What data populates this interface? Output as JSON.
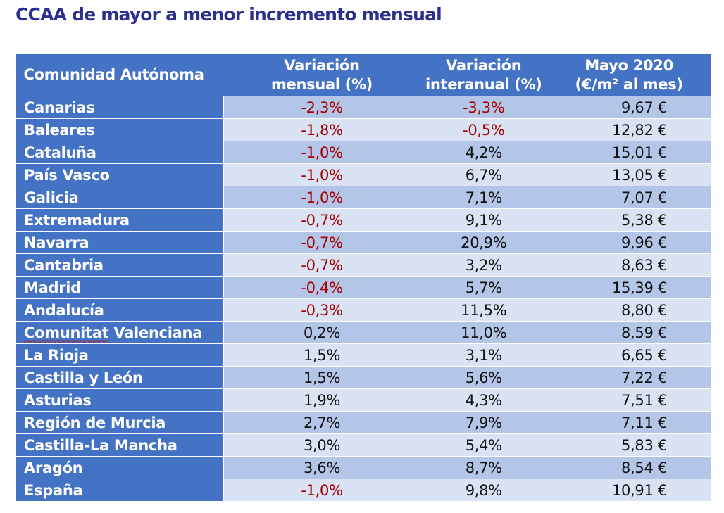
{
  "title": "CCAA de mayor a menor incremento mensual",
  "headers": [
    "Comunidad Autónoma",
    "Variación mensual (%)",
    "Variación interanual (%)",
    "Mayo 2020 (€/m² al mes)"
  ],
  "header_lines": [
    [
      "Comunidad Autónoma"
    ],
    [
      "Variación",
      "mensual (%)"
    ],
    [
      "Variación",
      "interanual (%)"
    ],
    [
      "Mayo 2020",
      "(€/m² al mes)"
    ]
  ],
  "colors": {
    "header": "#4472c4",
    "row_odd": "#b4c6e7",
    "row_even": "#dae3f3",
    "negative": "#a50000",
    "title": "#2b2f8f"
  },
  "rows": [
    [
      "Canarias",
      "-2,3%",
      "-3,3%",
      "9,67 €"
    ],
    [
      "Baleares",
      "-1,8%",
      "-0,5%",
      "12,82 €"
    ],
    [
      "Cataluña",
      "-1,0%",
      "4,2%",
      "15,01 €"
    ],
    [
      "País Vasco",
      "-1,0%",
      "6,7%",
      "13,05 €"
    ],
    [
      "Galicia",
      "-1,0%",
      "7,1%",
      "7,07 €"
    ],
    [
      "Extremadura",
      "-0,7%",
      "9,1%",
      "5,38 €"
    ],
    [
      "Navarra",
      "-0,7%",
      "20,9%",
      "9,96 €"
    ],
    [
      "Cantabria",
      "-0,7%",
      "3,2%",
      "8,63 €"
    ],
    [
      "Madrid",
      "-0,4%",
      "5,7%",
      "15,39 €"
    ],
    [
      "Andalucía",
      "-0,3%",
      "11,5%",
      "8,80 €"
    ],
    [
      "Comunitat Valenciana",
      "0,2%",
      "11,0%",
      "8,59 €"
    ],
    [
      "La Rioja",
      "1,5%",
      "3,1%",
      "6,65 €"
    ],
    [
      "Castilla y León",
      "1,5%",
      "5,6%",
      "7,22 €"
    ],
    [
      "Asturias",
      "1,9%",
      "4,3%",
      "7,51 €"
    ],
    [
      "Región de Murcia",
      "2,7%",
      "7,9%",
      "7,11 €"
    ],
    [
      "Castilla-La Mancha",
      "3,0%",
      "5,4%",
      "5,83 €"
    ],
    [
      "Aragón",
      "3,6%",
      "8,7%",
      "8,54 €"
    ],
    [
      "España",
      "-1,0%",
      "9,8%",
      "10,91 €"
    ]
  ]
}
